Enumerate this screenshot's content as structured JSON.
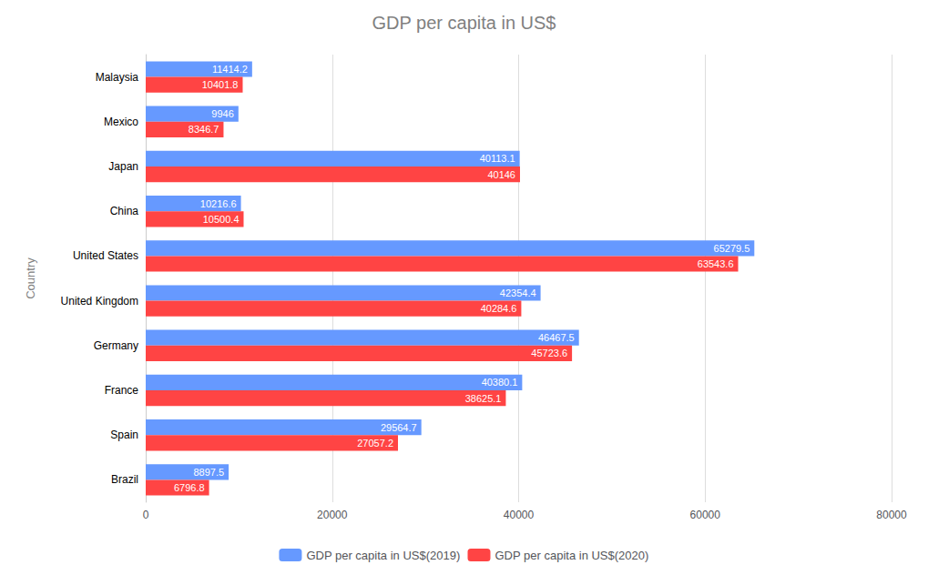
{
  "chart_data": {
    "type": "bar",
    "orientation": "horizontal",
    "title": "GDP per capita in US$",
    "ylabel": "Country",
    "categories": [
      "Brazil",
      "Spain",
      "France",
      "Germany",
      "United Kingdom",
      "United States",
      "China",
      "Japan",
      "Mexico",
      "Malaysia"
    ],
    "series": [
      {
        "name": "GDP per capita in US$(2019)",
        "color": "#6699FF",
        "values": [
          8897.5,
          29564.7,
          40380.1,
          46467.5,
          42354.4,
          65279.5,
          10216.6,
          40113.1,
          9946,
          11414.2
        ]
      },
      {
        "name": "GDP per capita in US$(2020)",
        "color": "#FF4444",
        "values": [
          6796.8,
          27057.2,
          38625.1,
          45723.6,
          40284.6,
          63543.6,
          10500.4,
          40146,
          8346.7,
          10401.8
        ]
      }
    ],
    "xlim": [
      0,
      80000
    ],
    "xticks": [
      0,
      20000,
      40000,
      60000,
      80000
    ],
    "grid": true,
    "legend": "bottom",
    "data_labels": true
  }
}
